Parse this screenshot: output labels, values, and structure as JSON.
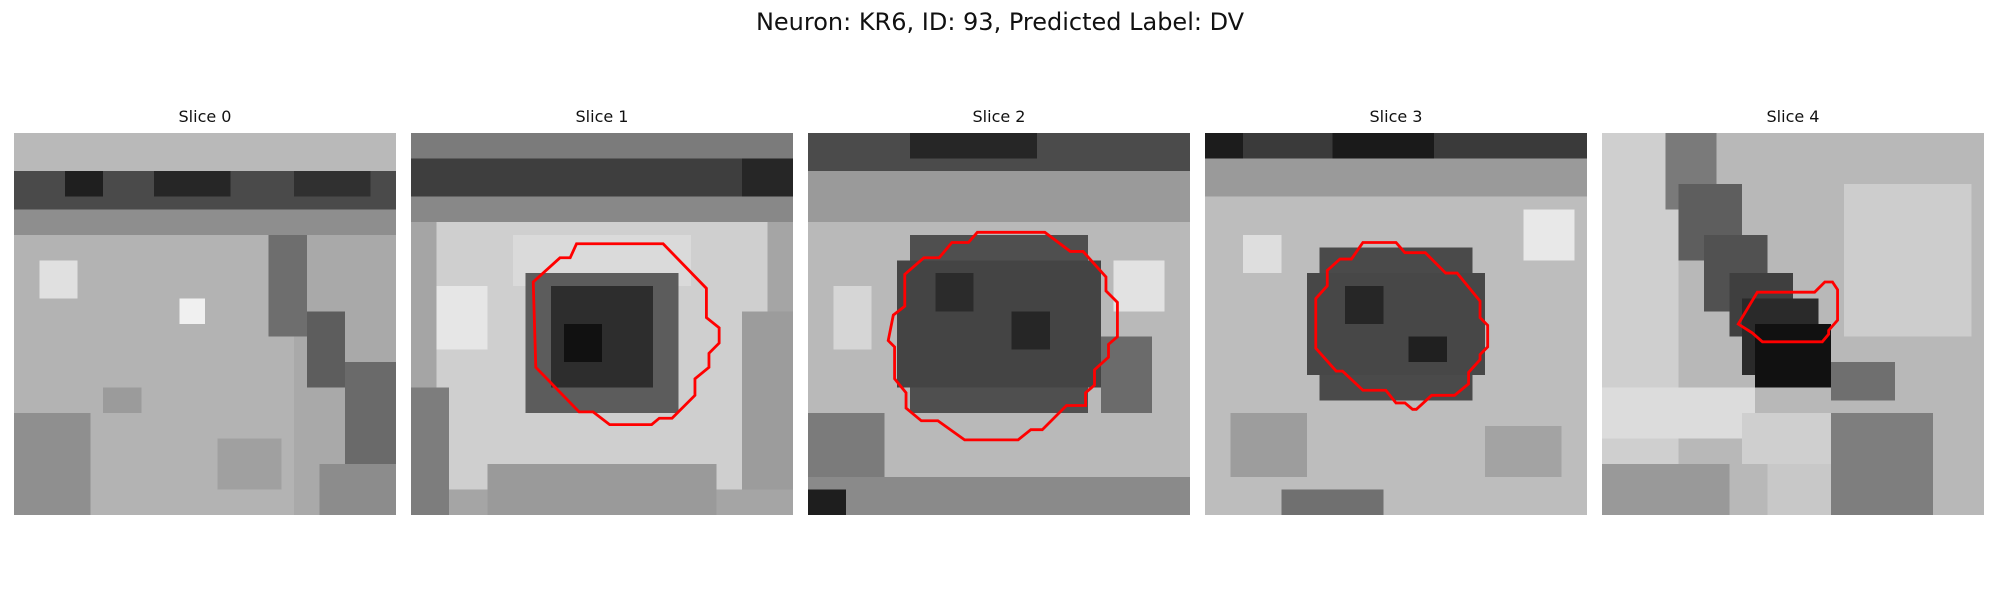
{
  "figure": {
    "title": "Neuron: KR6, ID: 93, Predicted Label: DV"
  },
  "panels": [
    {
      "title": "Slice 0",
      "has_contour": false
    },
    {
      "title": "Slice 1",
      "has_contour": true
    },
    {
      "title": "Slice 2",
      "has_contour": true
    },
    {
      "title": "Slice 3",
      "has_contour": true
    },
    {
      "title": "Slice 4",
      "has_contour": true
    }
  ],
  "colors": {
    "contour": "#ff0000",
    "background": "#ffffff"
  },
  "image": {
    "colormap": "grayscale",
    "grid": "30x30 pixels"
  }
}
